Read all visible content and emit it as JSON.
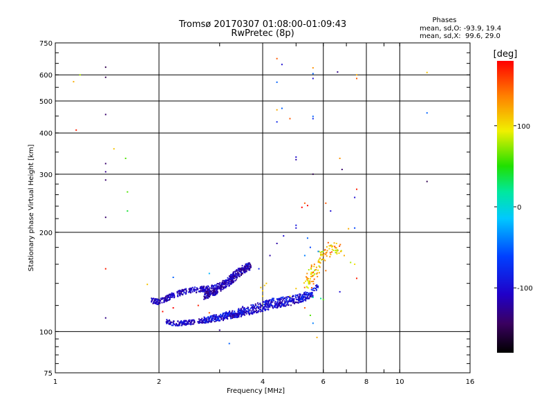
{
  "chart_data": {
    "type": "scatter",
    "title": "Tromsø 20170307 01:08:00-01:09:43",
    "subtitle": "RwPretec (8p)",
    "xlabel": "Frequency [MHz]",
    "ylabel": "Stationary phase Virtual Height [km]",
    "x_scale": "log",
    "y_scale": "log",
    "xlim": [
      1,
      16
    ],
    "ylim": [
      75,
      750
    ],
    "x_ticks": [
      1,
      2,
      4,
      6,
      8,
      10,
      16
    ],
    "x_tick_labels": [
      "1",
      "2",
      "4",
      "6",
      "8",
      "10",
      "16"
    ],
    "y_ticks": [
      75,
      100,
      200,
      300,
      400,
      500,
      600,
      750
    ],
    "y_tick_labels": [
      "75",
      "100",
      "200",
      "300",
      "400",
      "500",
      "600",
      "750"
    ],
    "grid": true,
    "info_box": {
      "heading": "Phases",
      "line1": "mean, sd,O: -93.9, 19.4",
      "line2": "mean, sd,X:  99.6, 29.0"
    },
    "colorbar": {
      "label": "[deg]",
      "range": [
        -180,
        180
      ],
      "ticks": [
        100,
        0,
        -100
      ],
      "tick_labels": [
        "100",
        "0",
        "-100"
      ],
      "colormap": "rainbow"
    },
    "trace_o_lower": {
      "description": "O-mode lower trace",
      "x": [
        2.1,
        2.2,
        2.3,
        2.4,
        2.5,
        2.6,
        2.7,
        2.8,
        3.0,
        3.2,
        3.4,
        3.6,
        3.8,
        4.0,
        4.2,
        4.4,
        4.6,
        4.8,
        5.0,
        5.2,
        5.4,
        5.6
      ],
      "y": [
        107,
        106,
        106,
        106.5,
        107,
        107.5,
        108,
        108.5,
        109.5,
        111,
        112.5,
        114,
        115.5,
        117,
        119,
        120,
        121,
        122,
        123,
        125,
        127,
        130
      ],
      "phase": -105
    },
    "trace_o_upper": {
      "description": "O-mode upper trace",
      "x": [
        1.9,
        2.0,
        2.1,
        2.2,
        2.3,
        2.4,
        2.5,
        2.6,
        2.7,
        2.8,
        2.9,
        3.0,
        3.1,
        3.2,
        3.3,
        3.4,
        3.5,
        3.6,
        3.7
      ],
      "y": [
        124,
        123,
        126,
        129,
        131,
        132.5,
        133.5,
        134,
        134.5,
        135,
        136,
        138,
        141,
        145,
        149,
        153,
        156,
        158,
        159
      ],
      "phase": -110
    },
    "trace_x_lower": {
      "description": "X-mode lower trace",
      "x": [
        2.7,
        2.8,
        3.0,
        3.2,
        3.4,
        3.6,
        3.8,
        4.0,
        4.2,
        4.4,
        4.6,
        4.8,
        5.0,
        5.2,
        5.4,
        5.6,
        5.8
      ],
      "y": [
        108.5,
        109.5,
        111,
        113,
        115,
        117,
        119,
        121,
        123,
        124.5,
        125,
        125.5,
        126.5,
        128,
        130,
        133,
        137
      ],
      "phase": -95
    },
    "trace_x_upper": {
      "description": "X-mode upper trace",
      "x": [
        2.7,
        2.8,
        2.9,
        3.0,
        3.1,
        3.2,
        3.3,
        3.4,
        3.5,
        3.6,
        3.7
      ],
      "y": [
        128,
        130,
        132,
        135,
        138,
        141,
        145,
        149,
        153,
        156,
        158
      ],
      "phase": -115
    },
    "f2_cluster": {
      "description": "Scatter cluster near 5.5-6.7 MHz",
      "x": [
        5.4,
        5.5,
        5.6,
        5.7,
        5.8,
        5.9,
        6.0,
        6.2,
        6.4,
        6.6
      ],
      "y": [
        140,
        145,
        150,
        155,
        160,
        165,
        170,
        175,
        178,
        180
      ],
      "phase": 115
    },
    "points": [
      [
        1.13,
        572,
        120
      ],
      [
        1.18,
        600,
        80
      ],
      [
        1.15,
        408,
        170
      ],
      [
        1.4,
        633,
        -150
      ],
      [
        1.4,
        590,
        -150
      ],
      [
        1.4,
        455,
        -140
      ],
      [
        1.48,
        358,
        110
      ],
      [
        1.4,
        323,
        -140
      ],
      [
        1.4,
        305,
        -130
      ],
      [
        1.4,
        288,
        -140
      ],
      [
        1.4,
        222,
        -140
      ],
      [
        1.4,
        155,
        170
      ],
      [
        1.4,
        110,
        -130
      ],
      [
        1.6,
        335,
        60
      ],
      [
        1.62,
        265,
        60
      ],
      [
        1.62,
        232,
        40
      ],
      [
        1.85,
        139,
        110
      ],
      [
        2.05,
        115,
        175
      ],
      [
        2.2,
        118,
        180
      ],
      [
        2.6,
        120,
        170
      ],
      [
        2.8,
        114,
        150
      ],
      [
        3.0,
        101,
        -130
      ],
      [
        3.2,
        92,
        -50
      ],
      [
        3.5,
        119,
        -100
      ],
      [
        4.4,
        672,
        150
      ],
      [
        4.55,
        645,
        -100
      ],
      [
        4.4,
        570,
        -50
      ],
      [
        4.4,
        470,
        120
      ],
      [
        4.55,
        475,
        -50
      ],
      [
        4.4,
        432,
        -80
      ],
      [
        4.8,
        442,
        150
      ],
      [
        5.0,
        338,
        -100
      ],
      [
        5.0,
        332,
        -120
      ],
      [
        5.6,
        630,
        130
      ],
      [
        5.6,
        605,
        -50
      ],
      [
        5.6,
        585,
        -100
      ],
      [
        5.6,
        449,
        -50
      ],
      [
        5.6,
        442,
        -80
      ],
      [
        5.6,
        300,
        -150
      ],
      [
        6.6,
        612,
        -130
      ],
      [
        7.5,
        600,
        120
      ],
      [
        7.5,
        585,
        150
      ],
      [
        6.7,
        335,
        130
      ],
      [
        6.8,
        310,
        -140
      ],
      [
        5.3,
        245,
        150
      ],
      [
        5.4,
        241,
        180
      ],
      [
        5.2,
        238,
        180
      ],
      [
        6.1,
        245,
        150
      ],
      [
        6.3,
        232,
        -100
      ],
      [
        7.5,
        270,
        170
      ],
      [
        7.4,
        255,
        -100
      ],
      [
        5.0,
        210,
        -90
      ],
      [
        5.0,
        206,
        -100
      ],
      [
        5.4,
        192,
        -50
      ],
      [
        7.4,
        206,
        -60
      ],
      [
        7.1,
        205,
        120
      ],
      [
        5.5,
        180,
        -60
      ],
      [
        5.3,
        170,
        -40
      ],
      [
        5.8,
        175,
        -40
      ],
      [
        4.4,
        185,
        -120
      ],
      [
        4.6,
        195,
        -100
      ],
      [
        4.2,
        170,
        -120
      ],
      [
        4.8,
        128,
        100
      ],
      [
        5.0,
        135,
        110
      ],
      [
        5.3,
        118,
        150
      ],
      [
        5.5,
        112,
        60
      ],
      [
        5.6,
        106,
        -40
      ],
      [
        6.0,
        125,
        60
      ],
      [
        6.7,
        132,
        -100
      ],
      [
        7.5,
        145,
        170
      ],
      [
        6.2,
        186,
        150
      ],
      [
        6.3,
        182,
        130
      ],
      [
        6.6,
        176,
        80
      ],
      [
        6.9,
        170,
        120
      ],
      [
        7.2,
        162,
        80
      ],
      [
        7.4,
        160,
        100
      ],
      [
        5.75,
        96,
        120
      ],
      [
        5.6,
        127,
        20
      ],
      [
        5.9,
        126,
        20
      ],
      [
        6.1,
        153,
        140
      ],
      [
        4.0,
        133,
        110
      ],
      [
        4.05,
        138,
        110
      ],
      [
        4.1,
        140,
        110
      ],
      [
        3.95,
        136,
        110
      ],
      [
        4.0,
        128,
        110
      ],
      [
        12.0,
        610,
        110
      ],
      [
        12.0,
        460,
        -50
      ],
      [
        12.0,
        285,
        -150
      ],
      [
        2.2,
        146,
        -50
      ],
      [
        2.8,
        150,
        -20
      ],
      [
        3.6,
        160,
        -70
      ],
      [
        3.9,
        155,
        -80
      ]
    ]
  }
}
